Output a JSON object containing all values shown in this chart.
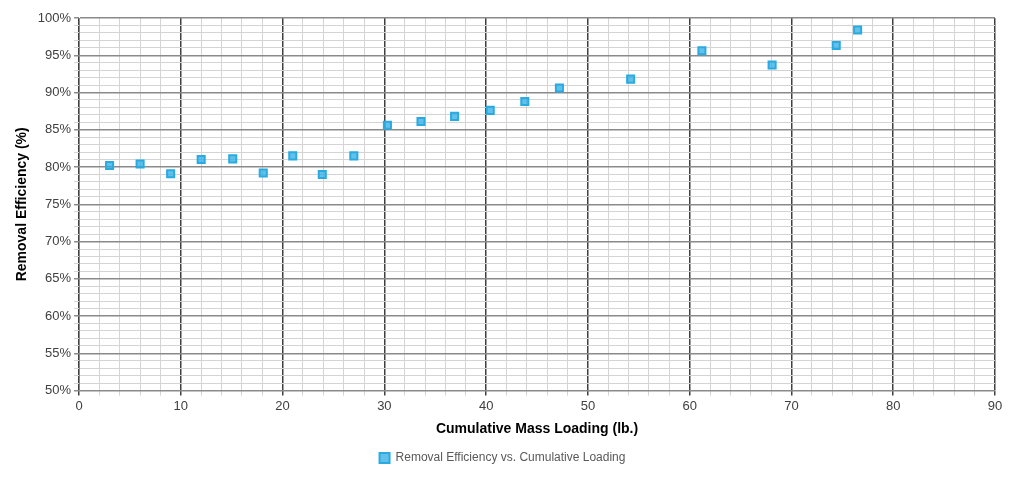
{
  "chart_data": {
    "type": "scatter",
    "xlabel": "Cumulative Mass Loading (lb.)",
    "ylabel": "Removal Efficiency (%)",
    "xlim": [
      0,
      90
    ],
    "ylim": [
      50,
      100
    ],
    "xticks": [
      0,
      {
        "value": 2,
        "label": null
      },
      {
        "value": 4,
        "label": null
      },
      {
        "value": 6,
        "label": null
      },
      {
        "value": 8,
        "label": null
      },
      10,
      {
        "value": 12,
        "label": null
      },
      {
        "value": 14,
        "label": null
      },
      {
        "value": 16,
        "label": null
      },
      {
        "value": 18,
        "label": null
      },
      20,
      {
        "value": 22,
        "label": null
      },
      {
        "value": 24,
        "label": null
      },
      {
        "value": 26,
        "label": null
      },
      {
        "value": 28,
        "label": null
      },
      30,
      {
        "value": 32,
        "label": null
      },
      {
        "value": 34,
        "label": null
      },
      {
        "value": 36,
        "label": null
      },
      {
        "value": 38,
        "label": null
      },
      40,
      {
        "value": 42,
        "label": null
      },
      {
        "value": 44,
        "label": null
      },
      {
        "value": 46,
        "label": null
      },
      {
        "value": 48,
        "label": null
      },
      50,
      {
        "value": 52,
        "label": null
      },
      {
        "value": 54,
        "label": null
      },
      {
        "value": 56,
        "label": null
      },
      {
        "value": 58,
        "label": null
      },
      60,
      {
        "value": 62,
        "label": null
      },
      {
        "value": 64,
        "label": null
      },
      {
        "value": 66,
        "label": null
      },
      {
        "value": 68,
        "label": null
      },
      70,
      {
        "value": 72,
        "label": null
      },
      {
        "value": 74,
        "label": null
      },
      {
        "value": 76,
        "label": null
      },
      {
        "value": 78,
        "label": null
      },
      80,
      {
        "value": 82,
        "label": null
      },
      {
        "value": 84,
        "label": null
      },
      {
        "value": 86,
        "label": null
      },
      {
        "value": 88,
        "label": null
      },
      90
    ],
    "yticks": [
      {
        "value": 50,
        "label": "50%"
      },
      {
        "value": 51,
        "label": null
      },
      {
        "value": 52,
        "label": null
      },
      {
        "value": 53,
        "label": null
      },
      {
        "value": 54,
        "label": null
      },
      {
        "value": 55,
        "label": "55%"
      },
      {
        "value": 56,
        "label": null
      },
      {
        "value": 57,
        "label": null
      },
      {
        "value": 58,
        "label": null
      },
      {
        "value": 59,
        "label": null
      },
      {
        "value": 60,
        "label": "60%"
      },
      {
        "value": 61,
        "label": null
      },
      {
        "value": 62,
        "label": null
      },
      {
        "value": 63,
        "label": null
      },
      {
        "value": 64,
        "label": null
      },
      {
        "value": 65,
        "label": "65%"
      },
      {
        "value": 66,
        "label": null
      },
      {
        "value": 67,
        "label": null
      },
      {
        "value": 68,
        "label": null
      },
      {
        "value": 69,
        "label": null
      },
      {
        "value": 70,
        "label": "70%"
      },
      {
        "value": 71,
        "label": null
      },
      {
        "value": 72,
        "label": null
      },
      {
        "value": 73,
        "label": null
      },
      {
        "value": 74,
        "label": null
      },
      {
        "value": 75,
        "label": "75%"
      },
      {
        "value": 76,
        "label": null
      },
      {
        "value": 77,
        "label": null
      },
      {
        "value": 78,
        "label": null
      },
      {
        "value": 79,
        "label": null
      },
      {
        "value": 80,
        "label": "80%"
      },
      {
        "value": 81,
        "label": null
      },
      {
        "value": 82,
        "label": null
      },
      {
        "value": 83,
        "label": null
      },
      {
        "value": 84,
        "label": null
      },
      {
        "value": 85,
        "label": "85%"
      },
      {
        "value": 86,
        "label": null
      },
      {
        "value": 87,
        "label": null
      },
      {
        "value": 88,
        "label": null
      },
      {
        "value": 89,
        "label": null
      },
      {
        "value": 90,
        "label": "90%"
      },
      {
        "value": 91,
        "label": null
      },
      {
        "value": 92,
        "label": null
      },
      {
        "value": 93,
        "label": null
      },
      {
        "value": 94,
        "label": null
      },
      {
        "value": 95,
        "label": "95%"
      },
      {
        "value": 96,
        "label": null
      },
      {
        "value": 97,
        "label": null
      },
      {
        "value": 98,
        "label": null
      },
      {
        "value": 99,
        "label": null
      },
      {
        "value": 100,
        "label": "100%"
      }
    ],
    "grid": true,
    "legend": "bottom",
    "marker": "square",
    "series": [
      {
        "name": "Removal Efficiency vs. Cumulative Loading",
        "color": "#29abe2",
        "x": [
          3,
          6,
          9,
          12,
          15.1,
          18.1,
          21,
          23.9,
          27,
          30.3,
          33.6,
          36.9,
          40.4,
          43.8,
          47.2,
          54.2,
          61.2,
          68.1,
          74.4,
          76.5
        ],
        "values": [
          80.2,
          80.4,
          79.1,
          81,
          81.1,
          79.2,
          81.5,
          79,
          81.5,
          85.6,
          86.1,
          86.8,
          87.6,
          88.8,
          90.6,
          91.8,
          95.6,
          93.7,
          96.3,
          98.4
        ]
      }
    ]
  }
}
